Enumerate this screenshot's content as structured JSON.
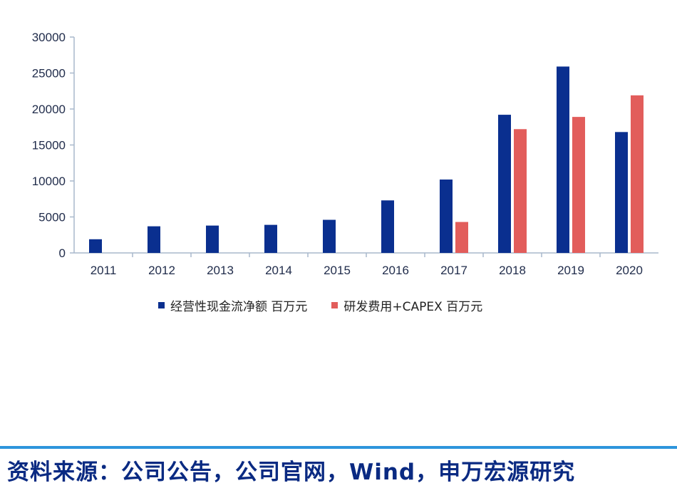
{
  "chart_data": {
    "type": "bar",
    "categories": [
      "2011",
      "2012",
      "2013",
      "2014",
      "2015",
      "2016",
      "2017",
      "2018",
      "2019",
      "2020"
    ],
    "series": [
      {
        "name": "经营性现金流净额 百万元",
        "color": "#0a2f8f",
        "values": [
          1900,
          3700,
          3800,
          3900,
          4600,
          7300,
          10200,
          19200,
          25900,
          16800
        ]
      },
      {
        "name": "研发费用+CAPEX 百万元",
        "color": "#e25d5b",
        "values": [
          null,
          null,
          null,
          null,
          null,
          null,
          4300,
          17200,
          18900,
          21900
        ]
      }
    ],
    "ylim": [
      0,
      30000
    ],
    "yticks": [
      0,
      5000,
      10000,
      15000,
      20000,
      25000,
      30000
    ],
    "ytick_labels": [
      "0",
      "5000",
      "10000",
      "15000",
      "20000",
      "25000",
      "30000"
    ],
    "title": "",
    "xlabel": "",
    "ylabel": "",
    "legend_position": "bottom",
    "grid": false
  },
  "footer": {
    "source_text": "资料来源：公司公告，公司官网，Wind，申万宏源研究"
  }
}
